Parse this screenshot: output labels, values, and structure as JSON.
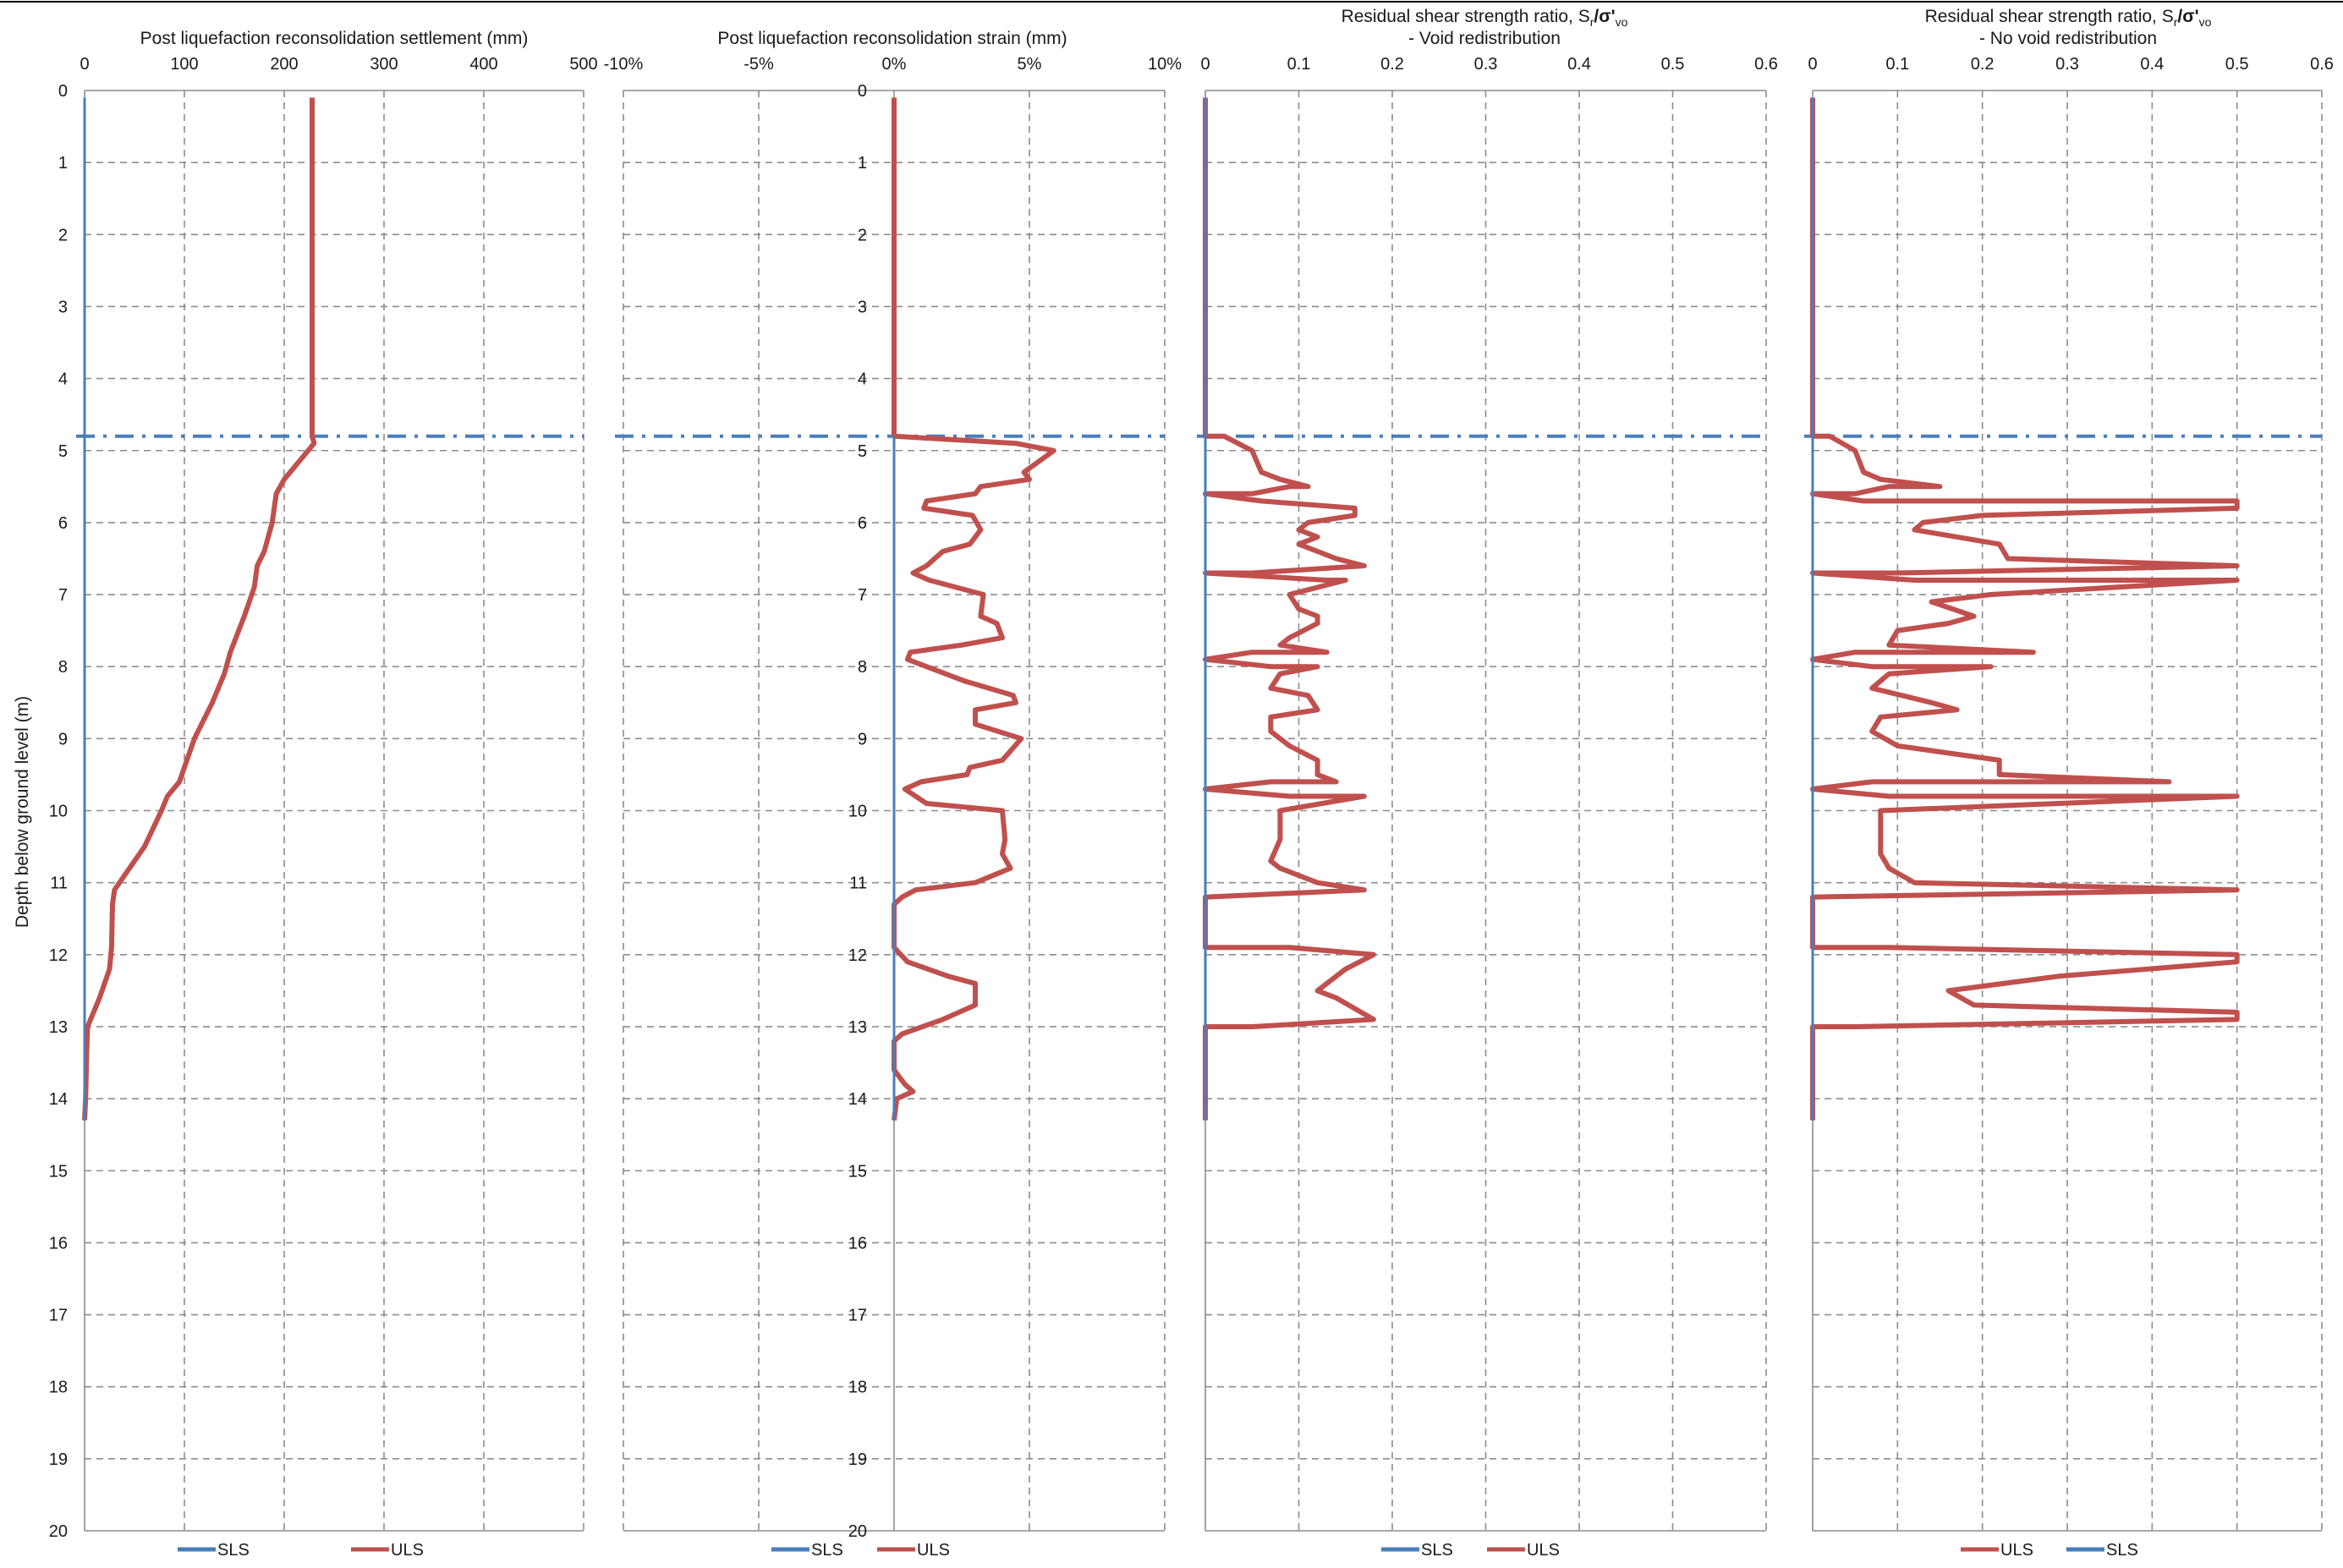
{
  "chart_data": [
    {
      "type": "line",
      "title": "Post liquefaction reconsolidation settlement (mm)",
      "ylabel": "Depth below ground level (m)",
      "xlim": [
        0,
        500
      ],
      "ylim": [
        0,
        20
      ],
      "x_ticks": [
        "0",
        "100",
        "200",
        "300",
        "400",
        "500"
      ],
      "y_ticks": [
        "0",
        "1",
        "2",
        "3",
        "4",
        "5",
        "6",
        "7",
        "8",
        "9",
        "10",
        "11",
        "12",
        "13",
        "14",
        "15",
        "16",
        "17",
        "18",
        "19",
        "20"
      ],
      "grid": true,
      "legend_placement": "bottom",
      "reference_line_depth": 4.8,
      "series": [
        {
          "name": "SLS",
          "color": "#4a7ebb",
          "points": [
            [
              0,
              0.1
            ],
            [
              0,
              14.3
            ]
          ]
        },
        {
          "name": "ULS",
          "color": "#c0504d",
          "points": [
            [
              228,
              0.1
            ],
            [
              228,
              4.8
            ],
            [
              230,
              4.9
            ],
            [
              200,
              5.4
            ],
            [
              192,
              5.6
            ],
            [
              188,
              6.0
            ],
            [
              180,
              6.4
            ],
            [
              173,
              6.6
            ],
            [
              170,
              6.9
            ],
            [
              160,
              7.3
            ],
            [
              146,
              7.8
            ],
            [
              140,
              8.1
            ],
            [
              128,
              8.5
            ],
            [
              110,
              9.0
            ],
            [
              95,
              9.6
            ],
            [
              83,
              9.8
            ],
            [
              77,
              10.0
            ],
            [
              60,
              10.5
            ],
            [
              40,
              10.9
            ],
            [
              30,
              11.1
            ],
            [
              28,
              11.3
            ],
            [
              27,
              11.9
            ],
            [
              25,
              12.2
            ],
            [
              15,
              12.6
            ],
            [
              3,
              13.0
            ],
            [
              2,
              13.4
            ],
            [
              1,
              14.0
            ],
            [
              0,
              14.3
            ]
          ]
        }
      ]
    },
    {
      "type": "line",
      "title": "Post liquefaction reconsolidation strain (mm)",
      "xlim": [
        -0.1,
        0.1
      ],
      "ylim": [
        0,
        20
      ],
      "x_ticks": [
        "-10%",
        "-5%",
        "0%",
        "5%",
        "10%"
      ],
      "y_ticks": [
        "0",
        "1",
        "2",
        "3",
        "4",
        "5",
        "6",
        "7",
        "8",
        "9",
        "10",
        "11",
        "12",
        "13",
        "14",
        "15",
        "16",
        "17",
        "18",
        "19",
        "20"
      ],
      "grid": true,
      "legend_placement": "bottom",
      "reference_line_depth": 4.8,
      "series": [
        {
          "name": "SLS",
          "color": "#4a7ebb",
          "points": [
            [
              0,
              4.8
            ],
            [
              0,
              14.3
            ]
          ]
        },
        {
          "name": "ULS",
          "color": "#c0504d",
          "points": [
            [
              0.0,
              0.1
            ],
            [
              0.0,
              4.8
            ],
            [
              0.045,
              4.9
            ],
            [
              0.059,
              5.0
            ],
            [
              0.048,
              5.3
            ],
            [
              0.05,
              5.4
            ],
            [
              0.032,
              5.5
            ],
            [
              0.03,
              5.6
            ],
            [
              0.012,
              5.7
            ],
            [
              0.011,
              5.8
            ],
            [
              0.029,
              5.9
            ],
            [
              0.032,
              6.1
            ],
            [
              0.028,
              6.3
            ],
            [
              0.018,
              6.4
            ],
            [
              0.012,
              6.6
            ],
            [
              0.007,
              6.7
            ],
            [
              0.013,
              6.8
            ],
            [
              0.033,
              7.0
            ],
            [
              0.032,
              7.3
            ],
            [
              0.038,
              7.4
            ],
            [
              0.04,
              7.6
            ],
            [
              0.025,
              7.7
            ],
            [
              0.006,
              7.8
            ],
            [
              0.005,
              7.9
            ],
            [
              0.026,
              8.2
            ],
            [
              0.044,
              8.4
            ],
            [
              0.045,
              8.5
            ],
            [
              0.03,
              8.6
            ],
            [
              0.03,
              8.8
            ],
            [
              0.047,
              9.0
            ],
            [
              0.04,
              9.3
            ],
            [
              0.028,
              9.4
            ],
            [
              0.027,
              9.5
            ],
            [
              0.01,
              9.6
            ],
            [
              0.004,
              9.7
            ],
            [
              0.012,
              9.9
            ],
            [
              0.04,
              10.0
            ],
            [
              0.041,
              10.4
            ],
            [
              0.04,
              10.6
            ],
            [
              0.043,
              10.8
            ],
            [
              0.03,
              11.0
            ],
            [
              0.008,
              11.1
            ],
            [
              0.003,
              11.2
            ],
            [
              0.0,
              11.3
            ],
            [
              0.0,
              11.9
            ],
            [
              0.005,
              12.1
            ],
            [
              0.02,
              12.3
            ],
            [
              0.03,
              12.4
            ],
            [
              0.03,
              12.5
            ],
            [
              0.03,
              12.7
            ],
            [
              0.018,
              12.9
            ],
            [
              0.003,
              13.1
            ],
            [
              0.0,
              13.2
            ],
            [
              0.0,
              13.6
            ],
            [
              0.004,
              13.8
            ],
            [
              0.007,
              13.9
            ],
            [
              0.001,
              14.0
            ],
            [
              0.0,
              14.3
            ]
          ]
        }
      ]
    },
    {
      "type": "line",
      "title": "Residual shear strength ratio, S",
      "subtitle": "- Void redistribution",
      "xlim": [
        0,
        0.6
      ],
      "ylim": [
        0,
        20
      ],
      "x_ticks": [
        "0",
        "0.1",
        "0.2",
        "0.3",
        "0.4",
        "0.5",
        "0.6"
      ],
      "grid": true,
      "legend_placement": "bottom",
      "reference_line_depth": 4.8,
      "series": [
        {
          "name": "SLS",
          "color": "#4a7ebb",
          "points": [
            [
              0,
              0.1
            ],
            [
              0,
              14.3
            ]
          ]
        },
        {
          "name": "ULS",
          "color": "#c0504d",
          "points": [
            [
              0,
              0.1
            ],
            [
              0,
              4.8
            ],
            [
              0.02,
              4.8
            ],
            [
              0.05,
              5.0
            ],
            [
              0.06,
              5.3
            ],
            [
              0.08,
              5.4
            ],
            [
              0.11,
              5.5
            ],
            [
              0.09,
              5.5
            ],
            [
              0.05,
              5.6
            ],
            [
              0.0,
              5.6
            ],
            [
              0.06,
              5.7
            ],
            [
              0.16,
              5.8
            ],
            [
              0.16,
              5.9
            ],
            [
              0.11,
              6.0
            ],
            [
              0.1,
              6.1
            ],
            [
              0.12,
              6.2
            ],
            [
              0.1,
              6.3
            ],
            [
              0.14,
              6.5
            ],
            [
              0.17,
              6.6
            ],
            [
              0.05,
              6.7
            ],
            [
              0.0,
              6.7
            ],
            [
              0.13,
              6.8
            ],
            [
              0.15,
              6.8
            ],
            [
              0.09,
              7.0
            ],
            [
              0.1,
              7.2
            ],
            [
              0.12,
              7.3
            ],
            [
              0.12,
              7.4
            ],
            [
              0.09,
              7.6
            ],
            [
              0.08,
              7.7
            ],
            [
              0.13,
              7.8
            ],
            [
              0.05,
              7.8
            ],
            [
              0.0,
              7.9
            ],
            [
              0.07,
              8.0
            ],
            [
              0.12,
              8.0
            ],
            [
              0.08,
              8.1
            ],
            [
              0.07,
              8.3
            ],
            [
              0.11,
              8.4
            ],
            [
              0.12,
              8.6
            ],
            [
              0.07,
              8.7
            ],
            [
              0.07,
              8.9
            ],
            [
              0.09,
              9.1
            ],
            [
              0.12,
              9.3
            ],
            [
              0.12,
              9.5
            ],
            [
              0.14,
              9.6
            ],
            [
              0.07,
              9.6
            ],
            [
              0.0,
              9.7
            ],
            [
              0.09,
              9.8
            ],
            [
              0.17,
              9.8
            ],
            [
              0.08,
              10.0
            ],
            [
              0.08,
              10.4
            ],
            [
              0.07,
              10.7
            ],
            [
              0.08,
              10.8
            ],
            [
              0.12,
              11.0
            ],
            [
              0.17,
              11.1
            ],
            [
              0.0,
              11.2
            ],
            [
              0.0,
              11.9
            ],
            [
              0.09,
              11.9
            ],
            [
              0.18,
              12.0
            ],
            [
              0.15,
              12.2
            ],
            [
              0.12,
              12.5
            ],
            [
              0.14,
              12.6
            ],
            [
              0.18,
              12.9
            ],
            [
              0.05,
              13.0
            ],
            [
              0.0,
              13.0
            ],
            [
              0,
              14.3
            ]
          ]
        }
      ]
    },
    {
      "type": "line",
      "title": "Residual shear strength ratio, S",
      "subtitle": "- No void redistribution",
      "xlim": [
        0,
        0.6
      ],
      "ylim": [
        0,
        20
      ],
      "x_ticks": [
        "0",
        "0.1",
        "0.2",
        "0.3",
        "0.4",
        "0.5",
        "0.6"
      ],
      "grid": true,
      "legend_placement": "bottom",
      "reference_line_depth": 4.8,
      "series": [
        {
          "name": "ULS",
          "color": "#c0504d",
          "points": [
            [
              0,
              0.1
            ],
            [
              0,
              4.8
            ],
            [
              0.02,
              4.8
            ],
            [
              0.05,
              5.0
            ],
            [
              0.06,
              5.3
            ],
            [
              0.08,
              5.4
            ],
            [
              0.15,
              5.5
            ],
            [
              0.09,
              5.5
            ],
            [
              0.05,
              5.6
            ],
            [
              0.0,
              5.6
            ],
            [
              0.06,
              5.7
            ],
            [
              0.5,
              5.7
            ],
            [
              0.5,
              5.8
            ],
            [
              0.2,
              5.9
            ],
            [
              0.13,
              6.0
            ],
            [
              0.12,
              6.1
            ],
            [
              0.22,
              6.3
            ],
            [
              0.23,
              6.5
            ],
            [
              0.5,
              6.6
            ],
            [
              0.1,
              6.7
            ],
            [
              0.0,
              6.7
            ],
            [
              0.12,
              6.8
            ],
            [
              0.5,
              6.8
            ],
            [
              0.21,
              7.0
            ],
            [
              0.14,
              7.1
            ],
            [
              0.19,
              7.3
            ],
            [
              0.16,
              7.4
            ],
            [
              0.1,
              7.5
            ],
            [
              0.09,
              7.7
            ],
            [
              0.26,
              7.8
            ],
            [
              0.05,
              7.8
            ],
            [
              0.0,
              7.9
            ],
            [
              0.07,
              8.0
            ],
            [
              0.21,
              8.0
            ],
            [
              0.09,
              8.1
            ],
            [
              0.07,
              8.3
            ],
            [
              0.14,
              8.5
            ],
            [
              0.17,
              8.6
            ],
            [
              0.08,
              8.7
            ],
            [
              0.07,
              8.9
            ],
            [
              0.1,
              9.1
            ],
            [
              0.22,
              9.3
            ],
            [
              0.22,
              9.5
            ],
            [
              0.42,
              9.6
            ],
            [
              0.07,
              9.6
            ],
            [
              0.0,
              9.7
            ],
            [
              0.09,
              9.8
            ],
            [
              0.5,
              9.8
            ],
            [
              0.08,
              10.0
            ],
            [
              0.08,
              10.6
            ],
            [
              0.09,
              10.8
            ],
            [
              0.12,
              11.0
            ],
            [
              0.5,
              11.1
            ],
            [
              0.0,
              11.2
            ],
            [
              0.0,
              11.9
            ],
            [
              0.09,
              11.9
            ],
            [
              0.5,
              12.0
            ],
            [
              0.5,
              12.1
            ],
            [
              0.29,
              12.3
            ],
            [
              0.16,
              12.5
            ],
            [
              0.19,
              12.7
            ],
            [
              0.5,
              12.8
            ],
            [
              0.5,
              12.9
            ],
            [
              0.05,
              13.0
            ],
            [
              0.0,
              13.0
            ],
            [
              0,
              14.3
            ]
          ]
        },
        {
          "name": "SLS",
          "color": "#4a7ebb",
          "points": [
            [
              0,
              0.1
            ],
            [
              0,
              14.3
            ]
          ]
        }
      ]
    }
  ],
  "panel_titles": {
    "p1": "Post liquefaction reconsolidation settlement (mm)",
    "p2": "Post liquefaction reconsolidation strain (mm)",
    "p3_line1_a": "Residual shear strength ratio, S",
    "p3_line1_sub": "r",
    "p3_line1_b": "/σ'",
    "p3_line1_sub2": "vo",
    "p3_line2": "- Void redistribution",
    "p4_line1_a": "Residual shear strength ratio, S",
    "p4_line1_sub": "r",
    "p4_line1_b": "/σ'",
    "p4_line1_sub2": "vo",
    "p4_line2": "- No void redistribution"
  },
  "ylabel": "Depth below ground level (m)",
  "colors": {
    "sls": "#4a7ebb",
    "uls": "#c0504d",
    "grid": "#8c8c8c",
    "reference": "#4a7ebb"
  }
}
